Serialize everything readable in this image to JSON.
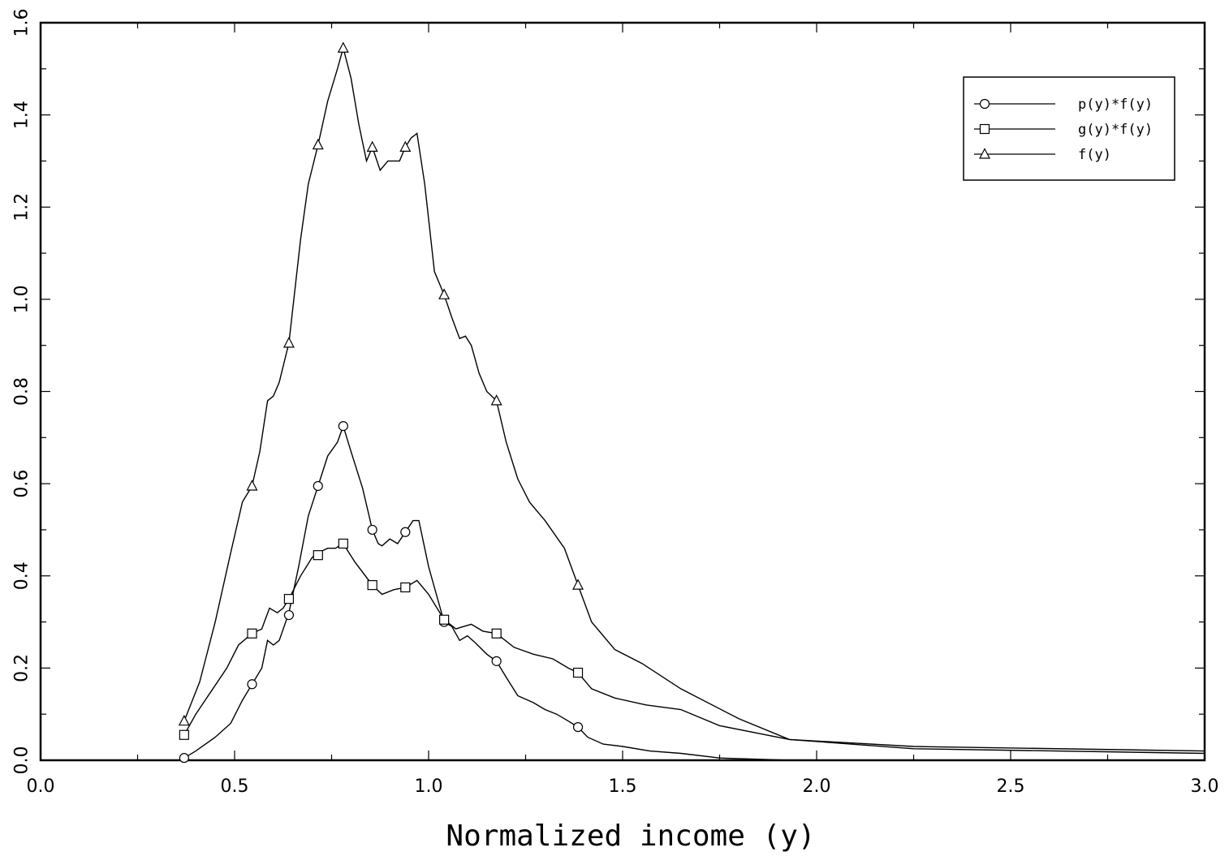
{
  "chart_data": {
    "type": "line",
    "title": "",
    "xlabel": "Normalized income (y)",
    "ylabel": "",
    "xlim": [
      0.0,
      3.0
    ],
    "ylim": [
      0.0,
      1.6
    ],
    "x_ticks": [
      "0.0",
      "0.5",
      "1.0",
      "1.5",
      "2.0",
      "2.5",
      "3.0"
    ],
    "y_ticks": [
      "0.0",
      "0.2",
      "0.4",
      "0.6",
      "0.8",
      "1.0",
      "1.2",
      "1.4",
      "1.6"
    ],
    "grid": false,
    "legend_position": "top-right",
    "series": [
      {
        "name": "p(y)*f(y)",
        "marker": "circle",
        "x": [
          0.37,
          0.4,
          0.45,
          0.49,
          0.52,
          0.545,
          0.57,
          0.585,
          0.6,
          0.615,
          0.64,
          0.665,
          0.69,
          0.715,
          0.74,
          0.765,
          0.78,
          0.8,
          0.83,
          0.855,
          0.87,
          0.88,
          0.9,
          0.92,
          0.94,
          0.96,
          0.975,
          1.0,
          1.04,
          1.06,
          1.08,
          1.1,
          1.12,
          1.15,
          1.175,
          1.2,
          1.23,
          1.27,
          1.3,
          1.33,
          1.36,
          1.385,
          1.41,
          1.45,
          1.5,
          1.57,
          1.65,
          1.75,
          1.93
        ],
        "y": [
          0.005,
          0.02,
          0.05,
          0.08,
          0.13,
          0.165,
          0.2,
          0.26,
          0.25,
          0.26,
          0.32,
          0.42,
          0.53,
          0.595,
          0.66,
          0.69,
          0.725,
          0.67,
          0.59,
          0.5,
          0.47,
          0.465,
          0.48,
          0.47,
          0.495,
          0.52,
          0.52,
          0.42,
          0.3,
          0.29,
          0.26,
          0.27,
          0.255,
          0.23,
          0.215,
          0.18,
          0.14,
          0.125,
          0.11,
          0.1,
          0.085,
          0.072,
          0.05,
          0.035,
          0.03,
          0.02,
          0.015,
          0.005,
          0.0
        ]
      },
      {
        "name": "g(y)*f(y)",
        "marker": "square",
        "x": [
          0.37,
          0.4,
          0.44,
          0.48,
          0.51,
          0.545,
          0.57,
          0.59,
          0.61,
          0.625,
          0.64,
          0.67,
          0.7,
          0.715,
          0.74,
          0.76,
          0.78,
          0.81,
          0.855,
          0.88,
          0.91,
          0.94,
          0.97,
          1.0,
          1.04,
          1.07,
          1.09,
          1.11,
          1.14,
          1.175,
          1.22,
          1.27,
          1.32,
          1.36,
          1.385,
          1.42,
          1.48,
          1.56,
          1.65,
          1.75,
          1.93,
          2.25,
          3.0
        ],
        "y": [
          0.055,
          0.1,
          0.15,
          0.2,
          0.25,
          0.275,
          0.285,
          0.33,
          0.32,
          0.33,
          0.35,
          0.4,
          0.44,
          0.45,
          0.46,
          0.46,
          0.47,
          0.43,
          0.38,
          0.36,
          0.37,
          0.375,
          0.39,
          0.36,
          0.305,
          0.285,
          0.29,
          0.295,
          0.28,
          0.275,
          0.245,
          0.23,
          0.22,
          0.2,
          0.19,
          0.155,
          0.135,
          0.12,
          0.11,
          0.075,
          0.045,
          0.03,
          0.02
        ]
      },
      {
        "name": "f(y)",
        "marker": "triangle",
        "x": [
          0.37,
          0.41,
          0.45,
          0.49,
          0.52,
          0.545,
          0.565,
          0.585,
          0.6,
          0.615,
          0.64,
          0.67,
          0.69,
          0.715,
          0.74,
          0.765,
          0.78,
          0.8,
          0.82,
          0.84,
          0.855,
          0.875,
          0.895,
          0.91,
          0.925,
          0.94,
          0.955,
          0.97,
          0.99,
          1.015,
          1.04,
          1.06,
          1.08,
          1.095,
          1.11,
          1.13,
          1.15,
          1.175,
          1.2,
          1.23,
          1.26,
          1.3,
          1.35,
          1.385,
          1.42,
          1.48,
          1.55,
          1.65,
          1.8,
          1.93,
          2.25,
          3.0
        ],
        "y": [
          0.085,
          0.17,
          0.3,
          0.45,
          0.56,
          0.595,
          0.67,
          0.78,
          0.79,
          0.82,
          0.905,
          1.13,
          1.25,
          1.335,
          1.43,
          1.5,
          1.545,
          1.48,
          1.38,
          1.3,
          1.33,
          1.28,
          1.3,
          1.3,
          1.3,
          1.33,
          1.35,
          1.36,
          1.25,
          1.06,
          1.01,
          0.96,
          0.915,
          0.92,
          0.9,
          0.84,
          0.8,
          0.78,
          0.69,
          0.61,
          0.56,
          0.52,
          0.46,
          0.38,
          0.3,
          0.24,
          0.21,
          0.155,
          0.09,
          0.045,
          0.025,
          0.015
        ]
      }
    ],
    "markers": {
      "p(y)*f(y)": [
        [
          0.37,
          0.005
        ],
        [
          0.545,
          0.165
        ],
        [
          0.64,
          0.315
        ],
        [
          0.715,
          0.595
        ],
        [
          0.78,
          0.725
        ],
        [
          0.855,
          0.5
        ],
        [
          0.94,
          0.495
        ],
        [
          1.04,
          0.3
        ],
        [
          1.175,
          0.215
        ],
        [
          1.385,
          0.072
        ]
      ],
      "g(y)*f(y)": [
        [
          0.37,
          0.055
        ],
        [
          0.545,
          0.275
        ],
        [
          0.64,
          0.35
        ],
        [
          0.715,
          0.445
        ],
        [
          0.78,
          0.47
        ],
        [
          0.855,
          0.38
        ],
        [
          0.94,
          0.375
        ],
        [
          1.04,
          0.305
        ],
        [
          1.175,
          0.275
        ],
        [
          1.385,
          0.19
        ]
      ],
      "f(y)": [
        [
          0.37,
          0.085
        ],
        [
          0.545,
          0.595
        ],
        [
          0.64,
          0.905
        ],
        [
          0.715,
          1.335
        ],
        [
          0.78,
          1.545
        ],
        [
          0.855,
          1.33
        ],
        [
          0.94,
          1.33
        ],
        [
          1.04,
          1.01
        ],
        [
          1.175,
          0.78
        ],
        [
          1.385,
          0.38
        ]
      ]
    }
  }
}
